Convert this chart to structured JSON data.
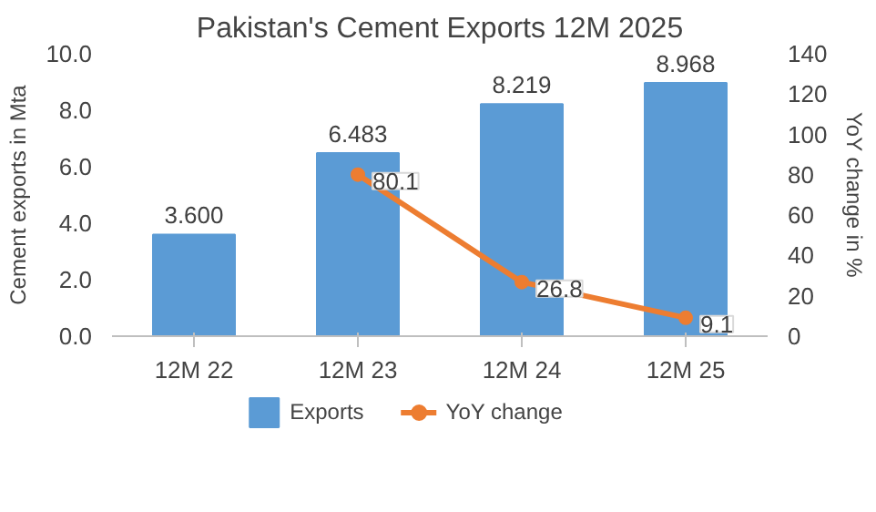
{
  "chart_data": {
    "type": "bar",
    "title": "Pakistan's Cement Exports 12M 2025",
    "ylabel": "Cement exports in Mta",
    "y2label": "YoY change in %",
    "categories": [
      "12M 22",
      "12M 23",
      "12M 24",
      "12M 25"
    ],
    "series": [
      {
        "name": "Exports",
        "color": "#5b9bd5",
        "values": [
          3.6,
          6.483,
          8.219,
          8.968
        ],
        "value_labels": [
          "3.600",
          "6.483",
          "8.219",
          "8.968"
        ]
      },
      {
        "name": "YoY change",
        "type": "line",
        "axis": "y2",
        "color": "#ed7d31",
        "marker": "circle",
        "values": [
          null,
          80.1,
          26.8,
          9.1
        ],
        "value_labels": [
          null,
          "80.1",
          "26.8",
          "9.1"
        ]
      }
    ],
    "ylim": [
      0,
      10
    ],
    "yticks": [
      {
        "value": 0,
        "label": "0.0"
      },
      {
        "value": 2,
        "label": "2.0"
      },
      {
        "value": 4,
        "label": "4.0"
      },
      {
        "value": 6,
        "label": "6.0"
      },
      {
        "value": 8,
        "label": "8.0"
      },
      {
        "value": 10,
        "label": "10.0"
      }
    ],
    "y2lim": [
      0,
      140
    ],
    "y2ticks": [
      0,
      20,
      40,
      60,
      80,
      100,
      120,
      140
    ],
    "grid": false,
    "legend": "bottom"
  }
}
